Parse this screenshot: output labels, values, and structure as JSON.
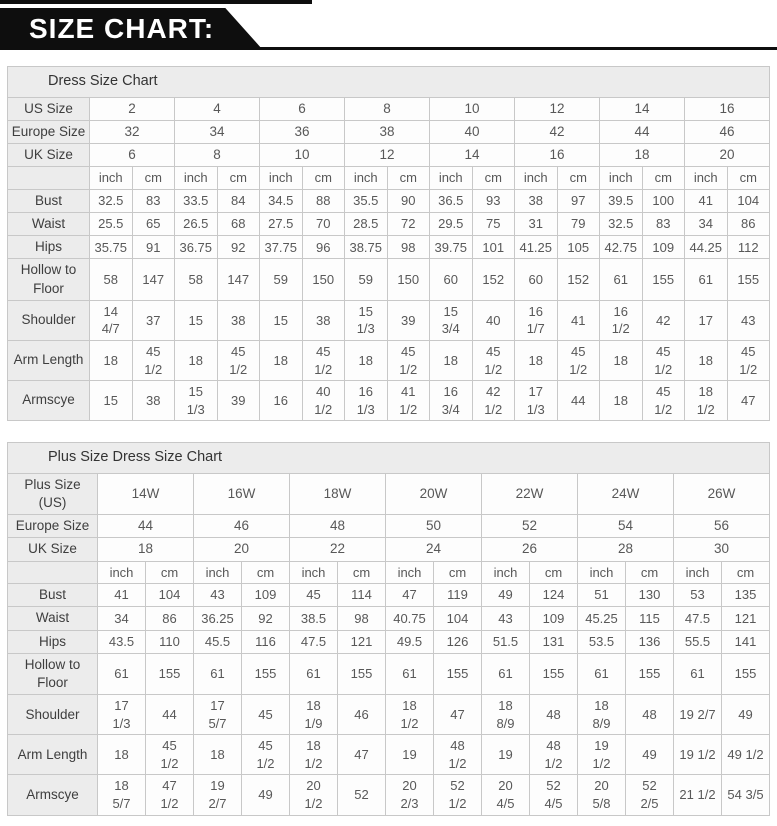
{
  "banner": {
    "title": "SIZE CHART:"
  },
  "colors": {
    "banner_bg": "#0e0e0e",
    "banner_text": "#ffffff",
    "header_row_bg": "#ececec",
    "cell_bg": "#fdfdfd",
    "border": "#c8c8c8",
    "text": "#585858"
  },
  "tables": [
    {
      "title": "Dress Size Chart",
      "units": [
        "inch",
        "cm"
      ],
      "size_rows": [
        {
          "label": "US Size",
          "values": [
            "2",
            "4",
            "6",
            "8",
            "10",
            "12",
            "14",
            "16"
          ]
        },
        {
          "label": "Europe Size",
          "values": [
            "32",
            "34",
            "36",
            "38",
            "40",
            "42",
            "44",
            "46"
          ]
        },
        {
          "label": "UK Size",
          "values": [
            "6",
            "8",
            "10",
            "12",
            "14",
            "16",
            "18",
            "20"
          ]
        }
      ],
      "measure_rows": [
        {
          "label": "Bust",
          "values": [
            "32.5",
            "83",
            "33.5",
            "84",
            "34.5",
            "88",
            "35.5",
            "90",
            "36.5",
            "93",
            "38",
            "97",
            "39.5",
            "100",
            "41",
            "104"
          ]
        },
        {
          "label": "Waist",
          "values": [
            "25.5",
            "65",
            "26.5",
            "68",
            "27.5",
            "70",
            "28.5",
            "72",
            "29.5",
            "75",
            "31",
            "79",
            "32.5",
            "83",
            "34",
            "86"
          ]
        },
        {
          "label": "Hips",
          "values": [
            "35.75",
            "91",
            "36.75",
            "92",
            "37.75",
            "96",
            "38.75",
            "98",
            "39.75",
            "101",
            "41.25",
            "105",
            "42.75",
            "109",
            "44.25",
            "112"
          ]
        },
        {
          "label": "Hollow to\nFloor",
          "values": [
            "58",
            "147",
            "58",
            "147",
            "59",
            "150",
            "59",
            "150",
            "60",
            "152",
            "60",
            "152",
            "61",
            "155",
            "61",
            "155"
          ]
        },
        {
          "label": "Shoulder",
          "values": [
            "14\n4/7",
            "37",
            "15",
            "38",
            "15",
            "38",
            "15\n1/3",
            "39",
            "15\n3/4",
            "40",
            "16\n1/7",
            "41",
            "16\n1/2",
            "42",
            "17",
            "43"
          ]
        },
        {
          "label": "Arm Length",
          "values": [
            "18",
            "45\n1/2",
            "18",
            "45\n1/2",
            "18",
            "45\n1/2",
            "18",
            "45\n1/2",
            "18",
            "45\n1/2",
            "18",
            "45\n1/2",
            "18",
            "45\n1/2",
            "18",
            "45\n1/2"
          ]
        },
        {
          "label": "Armscye",
          "values": [
            "15",
            "38",
            "15\n1/3",
            "39",
            "16",
            "40\n1/2",
            "16\n1/3",
            "41\n1/2",
            "16\n3/4",
            "42\n1/2",
            "17\n1/3",
            "44",
            "18",
            "45\n1/2",
            "18\n1/2",
            "47"
          ]
        }
      ]
    },
    {
      "title": "Plus Size Dress Size Chart",
      "units": [
        "inch",
        "cm"
      ],
      "size_rows": [
        {
          "label": "Plus Size (US)",
          "values": [
            "14W",
            "16W",
            "18W",
            "20W",
            "22W",
            "24W",
            "26W"
          ]
        },
        {
          "label": "Europe Size",
          "values": [
            "44",
            "46",
            "48",
            "50",
            "52",
            "54",
            "56"
          ]
        },
        {
          "label": "UK Size",
          "values": [
            "18",
            "20",
            "22",
            "24",
            "26",
            "28",
            "30"
          ]
        }
      ],
      "measure_rows": [
        {
          "label": "Bust",
          "values": [
            "41",
            "104",
            "43",
            "109",
            "45",
            "114",
            "47",
            "119",
            "49",
            "124",
            "51",
            "130",
            "53",
            "135"
          ]
        },
        {
          "label": "Waist",
          "values": [
            "34",
            "86",
            "36.25",
            "92",
            "38.5",
            "98",
            "40.75",
            "104",
            "43",
            "109",
            "45.25",
            "115",
            "47.5",
            "121"
          ]
        },
        {
          "label": "Hips",
          "values": [
            "43.5",
            "110",
            "45.5",
            "116",
            "47.5",
            "121",
            "49.5",
            "126",
            "51.5",
            "131",
            "53.5",
            "136",
            "55.5",
            "141"
          ]
        },
        {
          "label": "Hollow to\nFloor",
          "values": [
            "61",
            "155",
            "61",
            "155",
            "61",
            "155",
            "61",
            "155",
            "61",
            "155",
            "61",
            "155",
            "61",
            "155"
          ]
        },
        {
          "label": "Shoulder",
          "values": [
            "17\n1/3",
            "44",
            "17\n5/7",
            "45",
            "18\n1/9",
            "46",
            "18\n1/2",
            "47",
            "18\n8/9",
            "48",
            "18\n8/9",
            "48",
            "19 2/7",
            "49"
          ]
        },
        {
          "label": "Arm Length",
          "values": [
            "18",
            "45\n1/2",
            "18",
            "45\n1/2",
            "18\n1/2",
            "47",
            "19",
            "48\n1/2",
            "19",
            "48\n1/2",
            "19\n1/2",
            "49",
            "19 1/2",
            "49 1/2"
          ]
        },
        {
          "label": "Armscye",
          "values": [
            "18\n5/7",
            "47\n1/2",
            "19\n2/7",
            "49",
            "20\n1/2",
            "52",
            "20\n2/3",
            "52\n1/2",
            "20\n4/5",
            "52\n4/5",
            "20\n5/8",
            "52\n2/5",
            "21 1/2",
            "54 3/5"
          ]
        }
      ]
    }
  ]
}
